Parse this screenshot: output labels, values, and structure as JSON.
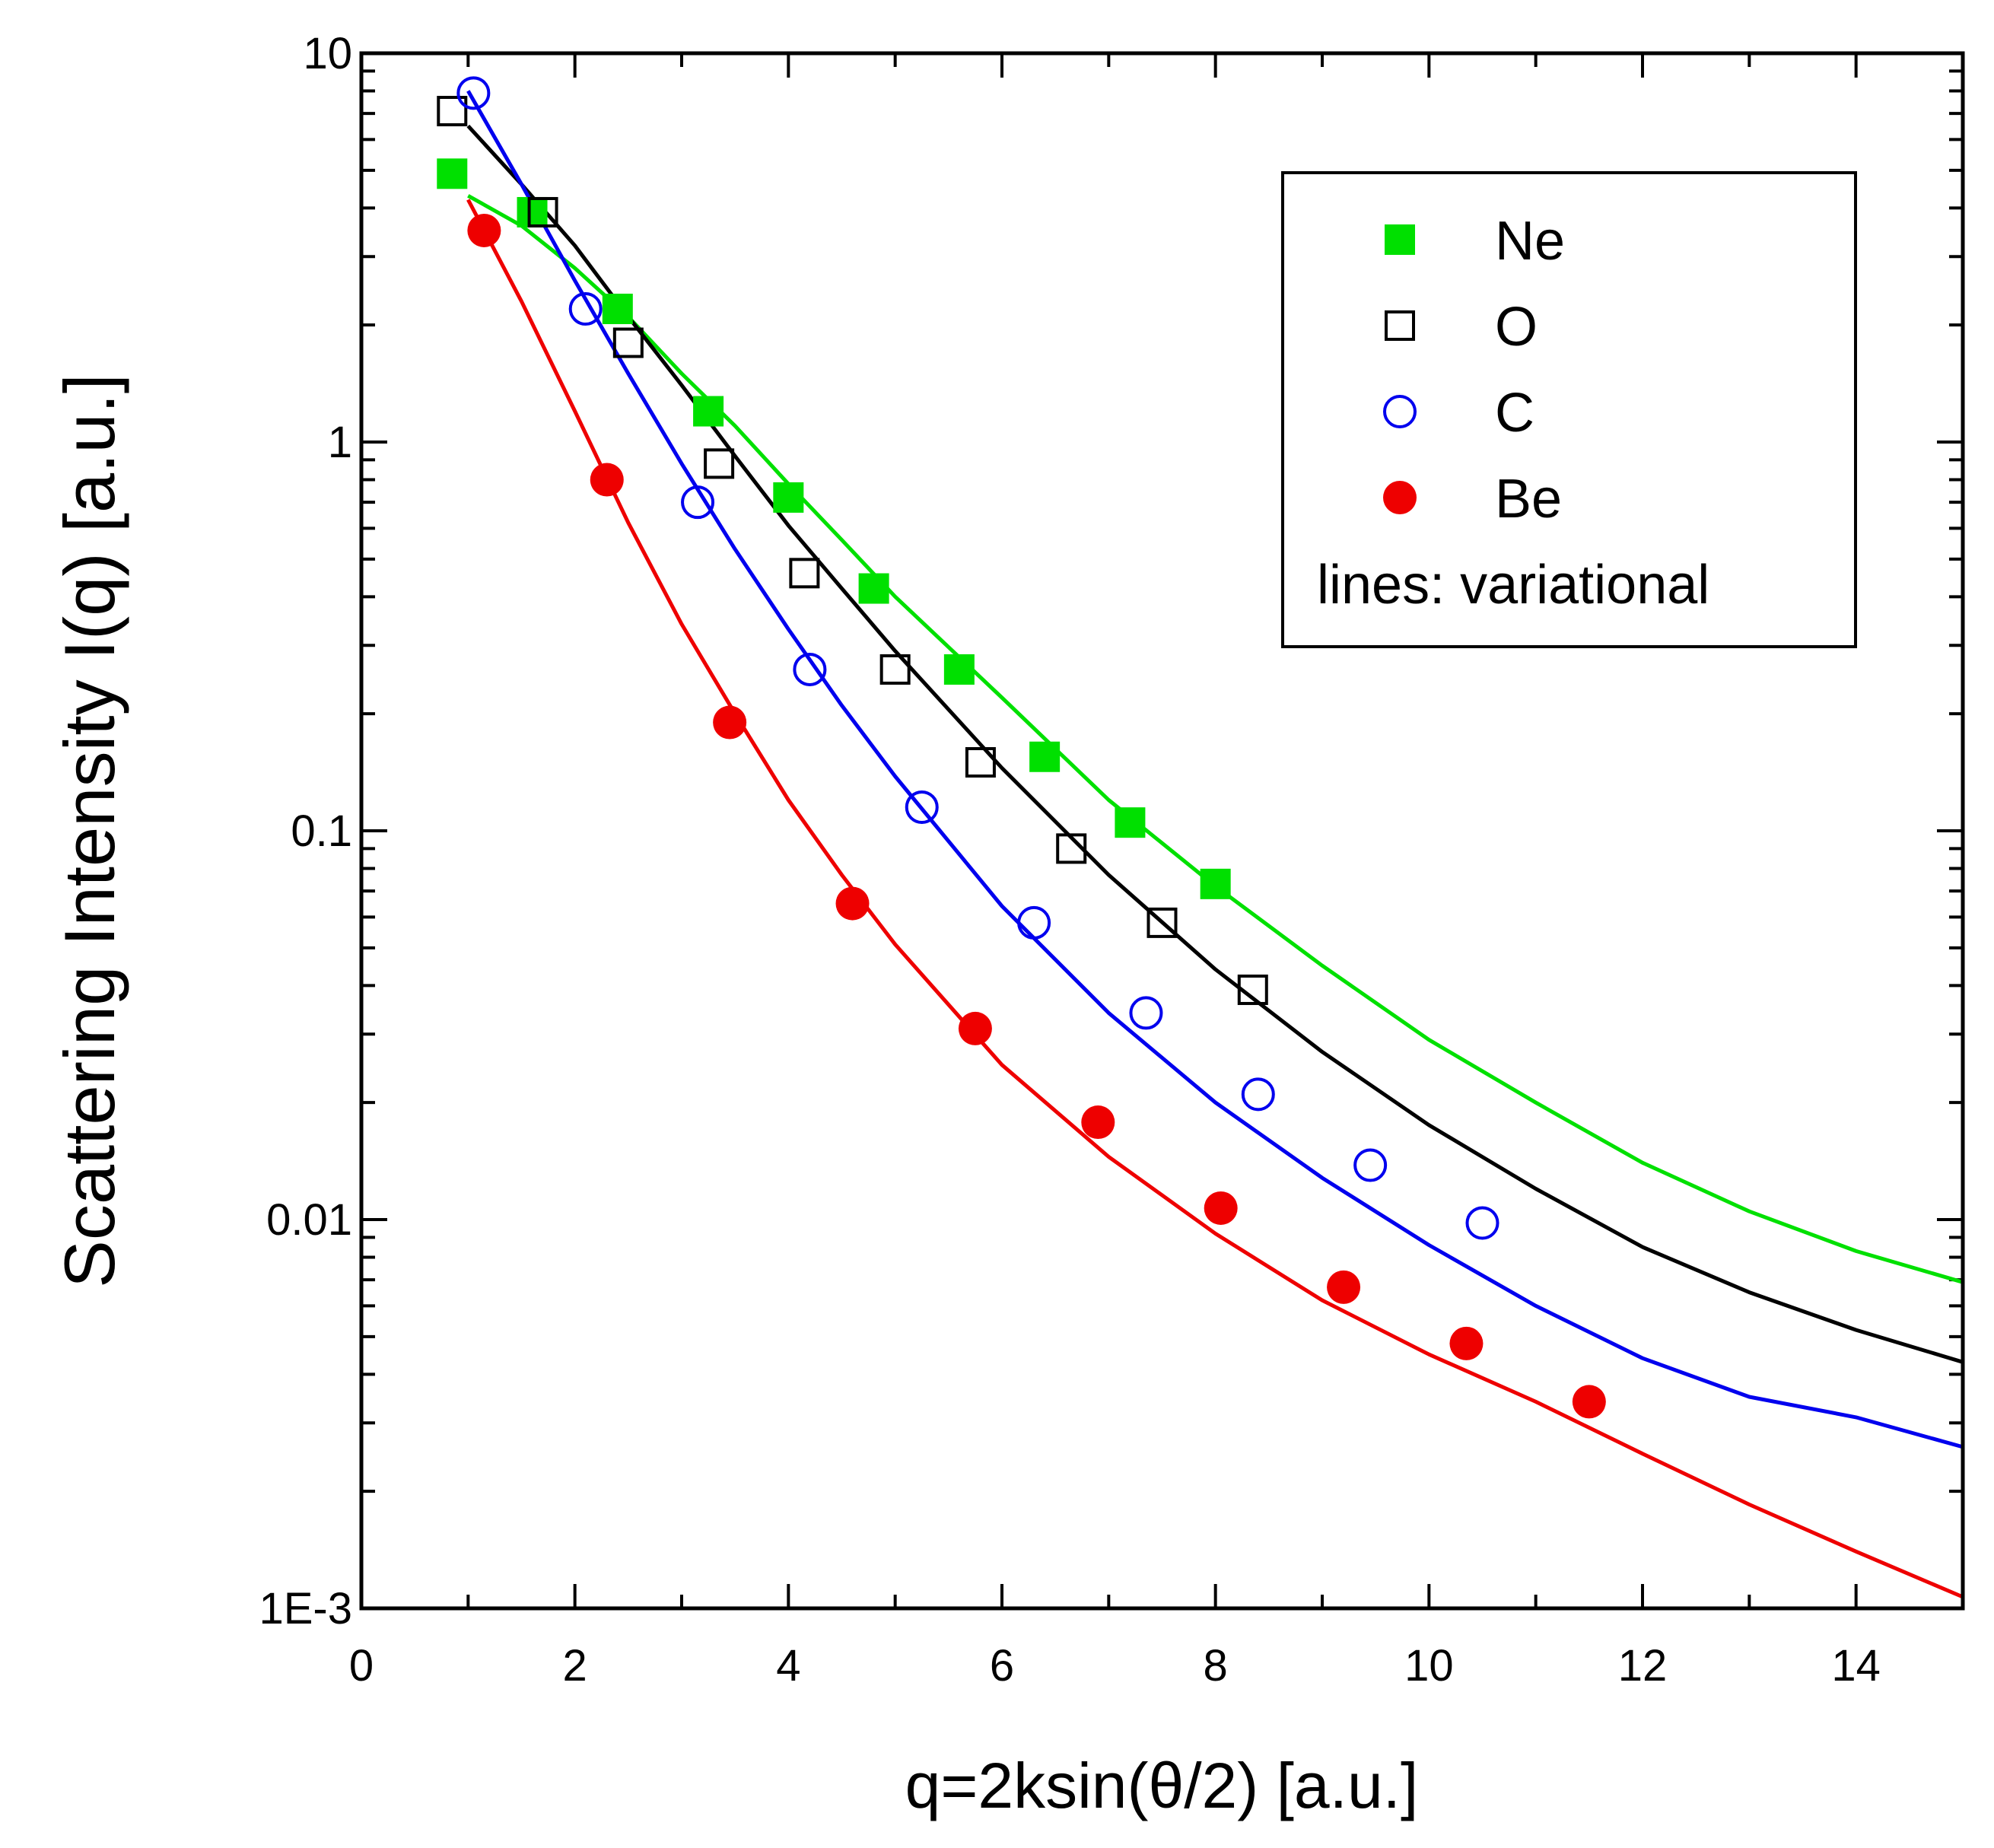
{
  "chart_data": {
    "type": "scatter",
    "title": "",
    "xlabel": "q=2ksin(θ/2) [a.u.]",
    "ylabel": "Scattering Intensity I(q) [a.u.]",
    "xlim": [
      0,
      15
    ],
    "ylim": [
      0.001,
      10
    ],
    "yscale": "log",
    "x_ticks": [
      "0",
      "2",
      "4",
      "6",
      "8",
      "10",
      "12",
      "14"
    ],
    "y_ticks": [
      "10",
      "1",
      "0.1",
      "0.01",
      "1E-3"
    ],
    "legend_position": "top-right",
    "legend_note": "lines: variational",
    "series": [
      {
        "name": "Ne",
        "color": "#00e000",
        "marker": "filled-square",
        "points": [
          [
            0.85,
            4.9
          ],
          [
            1.6,
            3.9
          ],
          [
            2.4,
            2.2
          ],
          [
            3.25,
            1.2
          ],
          [
            4.0,
            0.72
          ],
          [
            4.8,
            0.42
          ],
          [
            5.6,
            0.26
          ],
          [
            6.4,
            0.155
          ],
          [
            7.2,
            0.105
          ],
          [
            8.0,
            0.073
          ]
        ],
        "line": [
          [
            1.0,
            4.3
          ],
          [
            1.5,
            3.6
          ],
          [
            2.0,
            2.8
          ],
          [
            2.5,
            2.1
          ],
          [
            3.0,
            1.5
          ],
          [
            3.5,
            1.1
          ],
          [
            4.0,
            0.78
          ],
          [
            4.5,
            0.56
          ],
          [
            5.0,
            0.4
          ],
          [
            6.0,
            0.22
          ],
          [
            7.0,
            0.12
          ],
          [
            8.0,
            0.072
          ],
          [
            9.0,
            0.045
          ],
          [
            10.0,
            0.029
          ],
          [
            11.0,
            0.02
          ],
          [
            12.0,
            0.014
          ],
          [
            13.0,
            0.0105
          ],
          [
            14.0,
            0.0083
          ],
          [
            15.0,
            0.0069
          ]
        ]
      },
      {
        "name": "O",
        "color": "#000000",
        "marker": "open-square",
        "points": [
          [
            0.85,
            7.1
          ],
          [
            1.7,
            3.9
          ],
          [
            2.5,
            1.8
          ],
          [
            3.35,
            0.88
          ],
          [
            4.15,
            0.46
          ],
          [
            5.0,
            0.26
          ],
          [
            5.8,
            0.15
          ],
          [
            6.65,
            0.09
          ],
          [
            7.5,
            0.058
          ],
          [
            8.35,
            0.039
          ]
        ],
        "line": [
          [
            1.0,
            6.5
          ],
          [
            1.5,
            4.6
          ],
          [
            2.0,
            3.2
          ],
          [
            2.5,
            2.1
          ],
          [
            3.0,
            1.4
          ],
          [
            3.5,
            0.92
          ],
          [
            4.0,
            0.61
          ],
          [
            4.5,
            0.42
          ],
          [
            5.0,
            0.29
          ],
          [
            6.0,
            0.145
          ],
          [
            7.0,
            0.077
          ],
          [
            8.0,
            0.044
          ],
          [
            9.0,
            0.027
          ],
          [
            10.0,
            0.0175
          ],
          [
            11.0,
            0.012
          ],
          [
            12.0,
            0.0085
          ],
          [
            13.0,
            0.0065
          ],
          [
            14.0,
            0.0052
          ],
          [
            15.0,
            0.0043
          ]
        ]
      },
      {
        "name": "C",
        "color": "#0000ee",
        "marker": "open-circle",
        "points": [
          [
            1.05,
            7.9
          ],
          [
            2.1,
            2.2
          ],
          [
            3.15,
            0.7
          ],
          [
            4.2,
            0.26
          ],
          [
            5.25,
            0.115
          ],
          [
            6.3,
            0.058
          ],
          [
            7.35,
            0.034
          ],
          [
            8.4,
            0.021
          ],
          [
            9.45,
            0.0138
          ],
          [
            10.5,
            0.0098
          ]
        ],
        "line": [
          [
            1.0,
            8.0
          ],
          [
            1.5,
            4.6
          ],
          [
            2.0,
            2.6
          ],
          [
            2.5,
            1.5
          ],
          [
            3.0,
            0.88
          ],
          [
            3.5,
            0.53
          ],
          [
            4.0,
            0.33
          ],
          [
            4.5,
            0.21
          ],
          [
            5.0,
            0.138
          ],
          [
            6.0,
            0.064
          ],
          [
            7.0,
            0.034
          ],
          [
            8.0,
            0.02
          ],
          [
            9.0,
            0.0128
          ],
          [
            10.0,
            0.0086
          ],
          [
            11.0,
            0.006
          ],
          [
            12.0,
            0.0044
          ],
          [
            13.0,
            0.0035
          ],
          [
            14.0,
            0.0031
          ],
          [
            15.0,
            0.0026
          ]
        ]
      },
      {
        "name": "Be",
        "color": "#ee0000",
        "marker": "filled-circle",
        "points": [
          [
            1.15,
            3.5
          ],
          [
            2.3,
            0.8
          ],
          [
            3.45,
            0.19
          ],
          [
            4.6,
            0.065
          ],
          [
            5.75,
            0.031
          ],
          [
            6.9,
            0.0178
          ],
          [
            8.05,
            0.0107
          ],
          [
            9.2,
            0.0067
          ],
          [
            10.35,
            0.0048
          ],
          [
            11.5,
            0.0034
          ]
        ],
        "line": [
          [
            1.0,
            4.2
          ],
          [
            1.5,
            2.3
          ],
          [
            2.0,
            1.2
          ],
          [
            2.5,
            0.62
          ],
          [
            3.0,
            0.34
          ],
          [
            3.5,
            0.2
          ],
          [
            4.0,
            0.12
          ],
          [
            4.5,
            0.077
          ],
          [
            5.0,
            0.051
          ],
          [
            6.0,
            0.025
          ],
          [
            7.0,
            0.0145
          ],
          [
            8.0,
            0.0092
          ],
          [
            9.0,
            0.0062
          ],
          [
            10.0,
            0.0045
          ],
          [
            11.0,
            0.0034
          ],
          [
            12.0,
            0.0025
          ],
          [
            13.0,
            0.00185
          ],
          [
            14.0,
            0.0014
          ],
          [
            15.0,
            0.00107
          ]
        ]
      }
    ]
  }
}
